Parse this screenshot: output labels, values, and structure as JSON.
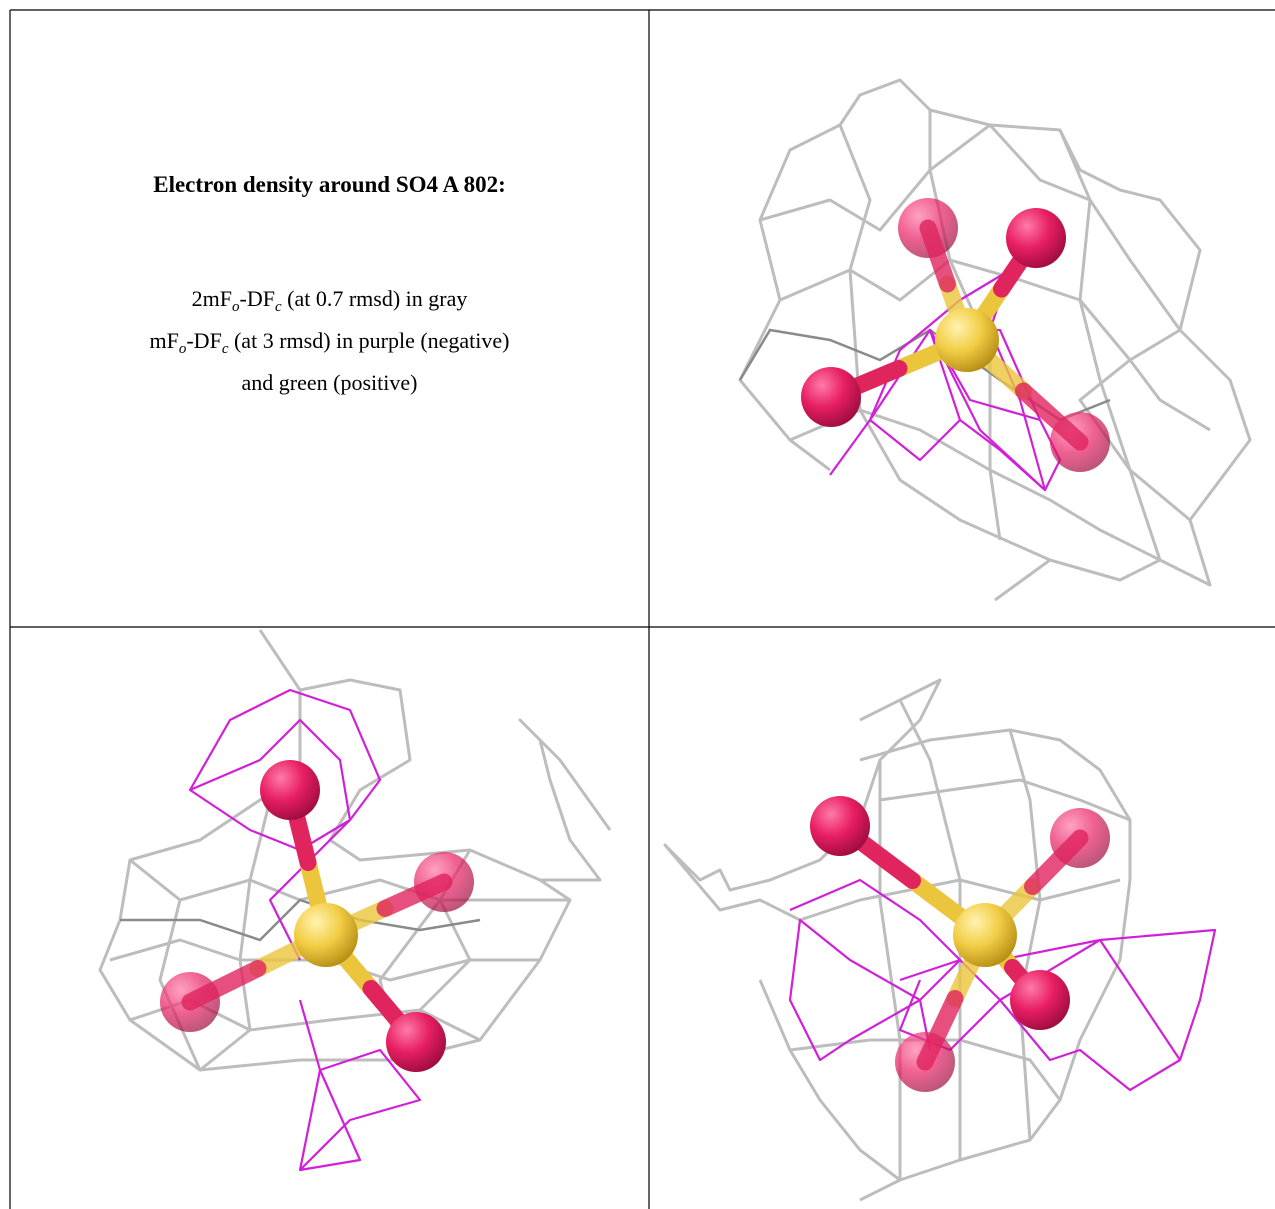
{
  "title": "Electron density around SO4 A 802:",
  "legend_lines": [
    [
      "2mF",
      "o",
      "-DF",
      "c",
      " (at 0.7 rmsd) in gray"
    ],
    [
      "mF",
      "o",
      "-DF",
      "c",
      " (at 3 rmsd) in purple (negative)"
    ],
    [
      "and green (positive)"
    ]
  ]
}
